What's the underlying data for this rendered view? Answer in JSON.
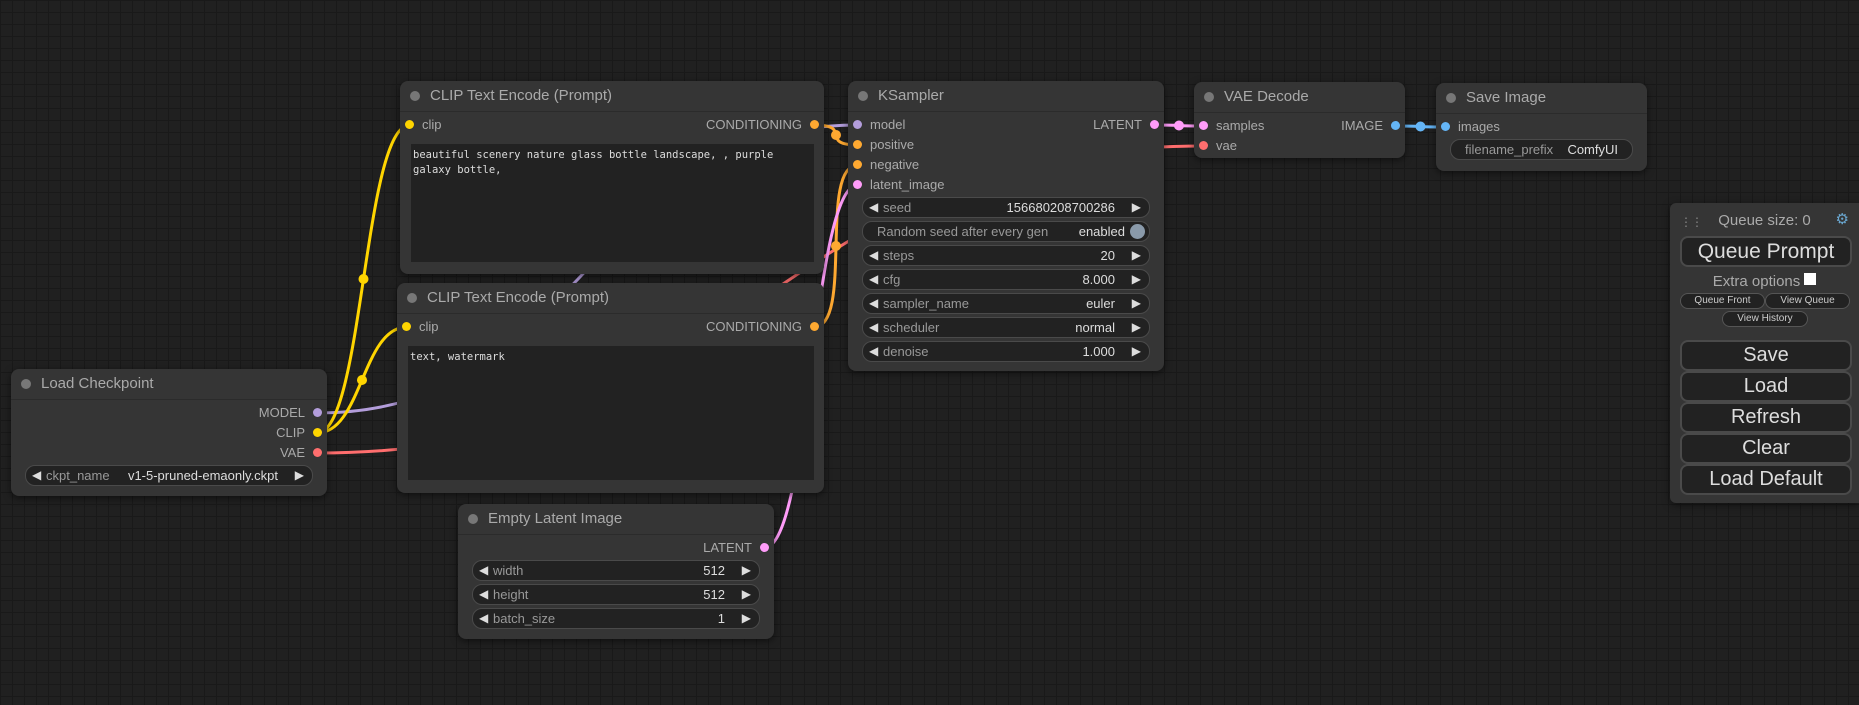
{
  "slot_colors": {
    "MODEL": "#b39ddb",
    "CLIP": "#ffd500",
    "VAE": "#ff6e6e",
    "CONDITIONING": "#ffa931",
    "LATENT": "#ff9cf9",
    "IMAGE": "#64b5f6"
  },
  "nodes": [
    {
      "title": "Load Checkpoint",
      "inputs": [],
      "outputs": [
        {
          "label": "MODEL",
          "type": "MODEL"
        },
        {
          "label": "CLIP",
          "type": "CLIP"
        },
        {
          "label": "VAE",
          "type": "VAE"
        }
      ],
      "widgets": [
        {
          "name": "ckpt_name",
          "value": "v1-5-pruned-emaonly.ckpt"
        }
      ]
    },
    {
      "title": "CLIP Text Encode (Prompt)",
      "inputs": [
        {
          "label": "clip",
          "type": "CLIP"
        }
      ],
      "outputs": [
        {
          "label": "CONDITIONING",
          "type": "CONDITIONING"
        }
      ],
      "widgets": [],
      "text": "beautiful scenery nature glass bottle landscape, , purple galaxy bottle,"
    },
    {
      "title": "CLIP Text Encode (Prompt)",
      "inputs": [
        {
          "label": "clip",
          "type": "CLIP"
        }
      ],
      "outputs": [
        {
          "label": "CONDITIONING",
          "type": "CONDITIONING"
        }
      ],
      "widgets": [],
      "text": "text, watermark"
    },
    {
      "title": "Empty Latent Image",
      "inputs": [],
      "outputs": [
        {
          "label": "LATENT",
          "type": "LATENT"
        }
      ],
      "widgets": [
        {
          "name": "width",
          "value": "512"
        },
        {
          "name": "height",
          "value": "512"
        },
        {
          "name": "batch_size",
          "value": "1"
        }
      ]
    },
    {
      "title": "KSampler",
      "inputs": [
        {
          "label": "model",
          "type": "MODEL"
        },
        {
          "label": "positive",
          "type": "CONDITIONING"
        },
        {
          "label": "negative",
          "type": "CONDITIONING"
        },
        {
          "label": "latent_image",
          "type": "LATENT"
        }
      ],
      "outputs": [
        {
          "label": "LATENT",
          "type": "LATENT"
        }
      ],
      "widgets": [
        {
          "name": "seed",
          "value": "156680208700286"
        },
        {
          "name": "Random seed after every gen",
          "value": "enabled",
          "toggle": true
        },
        {
          "name": "steps",
          "value": "20"
        },
        {
          "name": "cfg",
          "value": "8.000"
        },
        {
          "name": "sampler_name",
          "value": "euler"
        },
        {
          "name": "scheduler",
          "value": "normal"
        },
        {
          "name": "denoise",
          "value": "1.000"
        }
      ]
    },
    {
      "title": "VAE Decode",
      "inputs": [
        {
          "label": "samples",
          "type": "LATENT"
        },
        {
          "label": "vae",
          "type": "VAE"
        }
      ],
      "outputs": [
        {
          "label": "IMAGE",
          "type": "IMAGE"
        }
      ],
      "widgets": []
    },
    {
      "title": "Save Image",
      "inputs": [
        {
          "label": "images",
          "type": "IMAGE"
        }
      ],
      "outputs": [],
      "widgets": [
        {
          "name": "filename_prefix",
          "value": "ComfyUI",
          "text": true
        }
      ]
    }
  ],
  "menu": {
    "queue_size": "Queue size: 0",
    "queue_prompt": "Queue Prompt",
    "extra_options": "Extra options",
    "queue_front": "Queue Front",
    "view_queue": "View Queue",
    "view_history": "View History",
    "save": "Save",
    "load": "Load",
    "refresh": "Refresh",
    "clear": "Clear",
    "load_default": "Load Default"
  }
}
